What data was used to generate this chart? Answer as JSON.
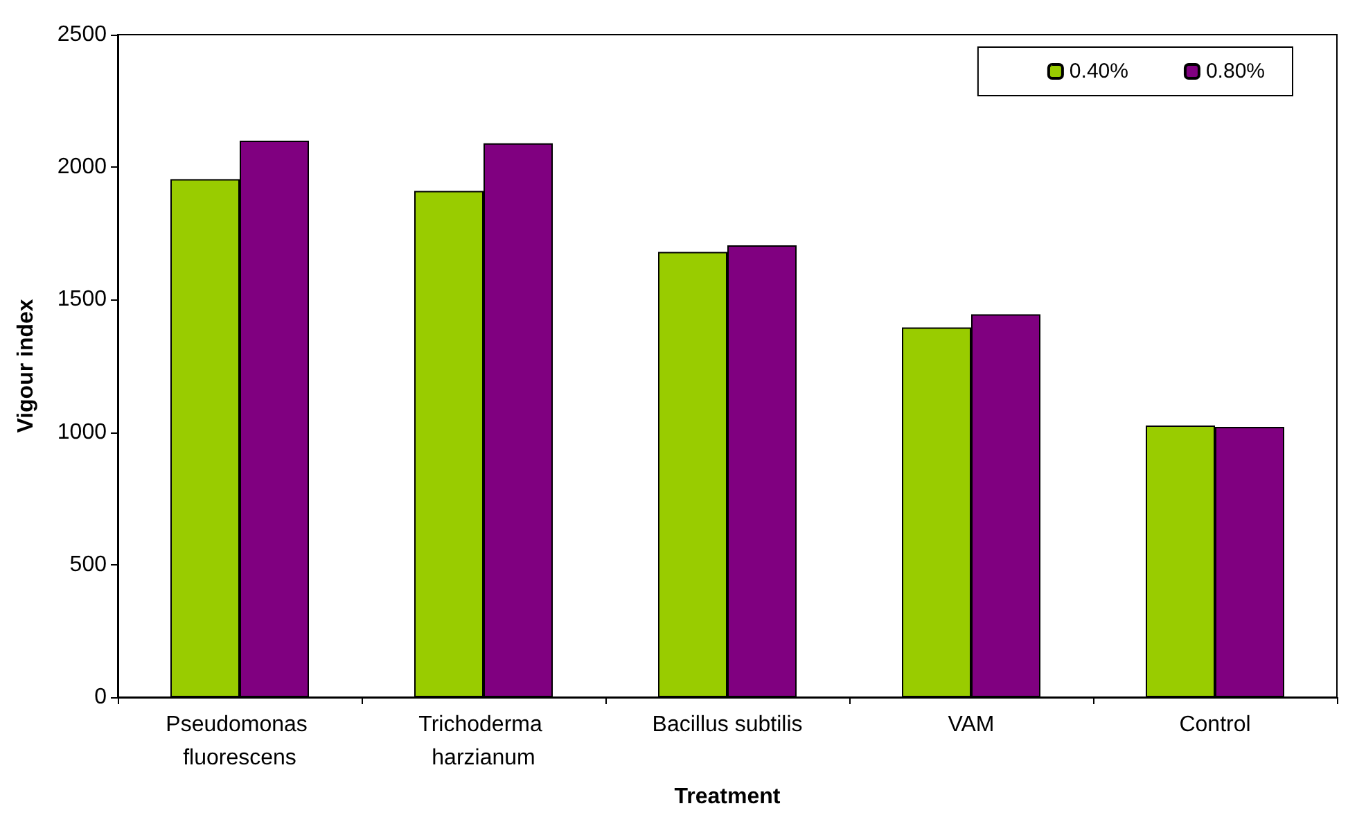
{
  "chart_data": {
    "type": "bar",
    "xlabel": "Treatment",
    "ylabel": "Vigour index",
    "categories": [
      "Pseudomonas fluorescens",
      "Trichoderma harzianum",
      "Bacillus subtilis",
      "VAM",
      "Control"
    ],
    "series": [
      {
        "name": "0.40%",
        "color": "#99cc00",
        "values": [
          1955,
          1910,
          1680,
          1395,
          1025
        ]
      },
      {
        "name": "0.80%",
        "color": "#800080",
        "values": [
          2100,
          2090,
          1705,
          1445,
          1020
        ]
      }
    ],
    "ylim": [
      0,
      2500
    ],
    "yticks": [
      0,
      500,
      1000,
      1500,
      2000,
      2500
    ],
    "grid": false,
    "legend": "top right"
  }
}
